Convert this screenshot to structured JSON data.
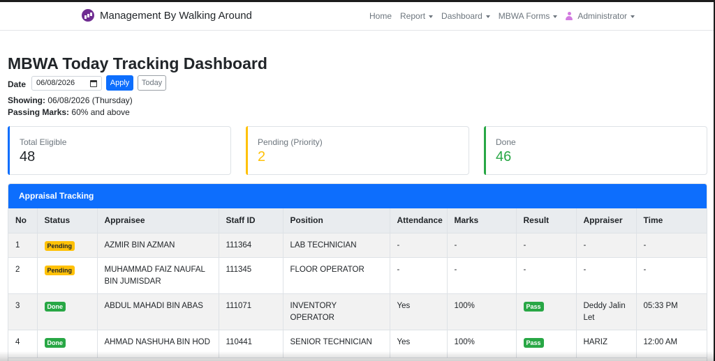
{
  "navbar": {
    "brand": "Management By Walking Around",
    "items": [
      {
        "label": "Home",
        "dropdown": false
      },
      {
        "label": "Report",
        "dropdown": true
      },
      {
        "label": "Dashboard",
        "dropdown": true
      },
      {
        "label": "MBWA Forms",
        "dropdown": true
      }
    ],
    "user_label": "Administrator"
  },
  "page": {
    "title": "MBWA Today Tracking Dashboard",
    "date_label": "Date",
    "date_value": "06/08/2026",
    "apply_label": "Apply",
    "today_label": "Today",
    "showing_label": "Showing:",
    "showing_value": "06/08/2026 (Thursday)",
    "passing_label": "Passing Marks:",
    "passing_value": "60% and above"
  },
  "cards": [
    {
      "label": "Total Eligible",
      "value": "48",
      "color": "#0d6efd",
      "value_color": "#212529"
    },
    {
      "label": "Pending (Priority)",
      "value": "2",
      "color": "#ffc107",
      "value_color": "#ffc107"
    },
    {
      "label": "Done",
      "value": "46",
      "color": "#28a745",
      "value_color": "#28a745"
    }
  ],
  "table": {
    "header": "Appraisal Tracking",
    "columns": [
      "No",
      "Status",
      "Appraisee",
      "Staff ID",
      "Position",
      "Attendance",
      "Marks",
      "Result",
      "Appraiser",
      "Time"
    ],
    "rows": [
      {
        "no": "1",
        "status": "Pending",
        "appraisee": "AZMIR BIN AZMAN",
        "staff_id": "111364",
        "position": "LAB TECHNICIAN",
        "attendance": "-",
        "marks": "-",
        "result": "-",
        "appraiser": "-",
        "time": "-"
      },
      {
        "no": "2",
        "status": "Pending",
        "appraisee": "MUHAMMAD FAIZ NAUFAL BIN JUMISDAR",
        "staff_id": "111345",
        "position": "FLOOR OPERATOR",
        "attendance": "-",
        "marks": "-",
        "result": "-",
        "appraiser": "-",
        "time": "-"
      },
      {
        "no": "3",
        "status": "Done",
        "appraisee": "ABDUL MAHADI BIN ABAS",
        "staff_id": "111071",
        "position": "INVENTORY OPERATOR",
        "attendance": "Yes",
        "marks": "100%",
        "result": "Pass",
        "appraiser": "Deddy Jalin Let",
        "time": "05:33 PM"
      },
      {
        "no": "4",
        "status": "Done",
        "appraisee": "AHMAD NASHUHA BIN HOD",
        "staff_id": "110441",
        "position": "SENIOR TECHNICIAN",
        "attendance": "Yes",
        "marks": "100%",
        "result": "Pass",
        "appraiser": "HARIZ",
        "time": "12:00 AM"
      }
    ]
  }
}
